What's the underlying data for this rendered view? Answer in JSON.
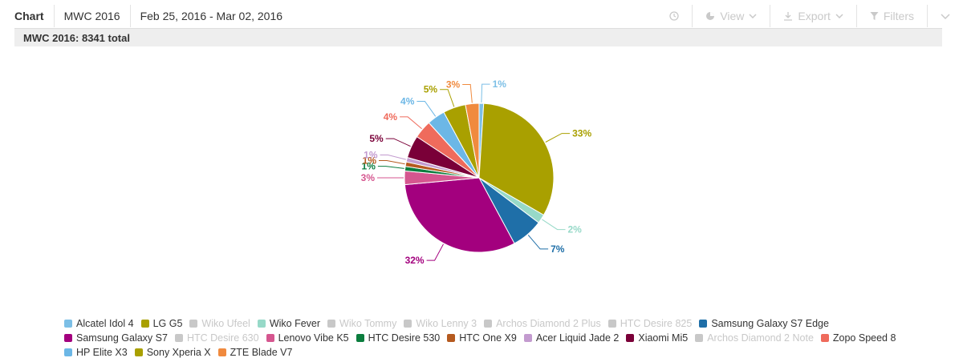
{
  "toolbar": {
    "tab_label": "Chart",
    "report_name": "MWC 2016",
    "date_range": "Feb 25, 2016 - Mar 02, 2016",
    "view_label": "View",
    "export_label": "Export",
    "filters_label": "Filters"
  },
  "subheader": {
    "title": "MWC 2016: 8341 total"
  },
  "colors": {
    "disabled": "#c8c8c8"
  },
  "chart_data": {
    "type": "pie",
    "slices": [
      {
        "label": "Alcatel Idol 4",
        "value": 1,
        "pct_label": "1%",
        "color": "#7cbfe6",
        "enabled": true
      },
      {
        "label": "LG G5",
        "value": 33,
        "pct_label": "33%",
        "color": "#a9a000",
        "enabled": true
      },
      {
        "label": "Wiko Ufeel",
        "value": 0,
        "pct_label": "",
        "color": "#c8c8c8",
        "enabled": false
      },
      {
        "label": "Wiko Fever",
        "value": 2,
        "pct_label": "2%",
        "color": "#97d9c8",
        "enabled": true
      },
      {
        "label": "Wiko Tommy",
        "value": 0,
        "pct_label": "",
        "color": "#c8c8c8",
        "enabled": false
      },
      {
        "label": "Wiko Lenny 3",
        "value": 0,
        "pct_label": "",
        "color": "#c8c8c8",
        "enabled": false
      },
      {
        "label": "Archos Diamond 2 Plus",
        "value": 0,
        "pct_label": "",
        "color": "#c8c8c8",
        "enabled": false
      },
      {
        "label": "HTC Desire 825",
        "value": 0,
        "pct_label": "",
        "color": "#c8c8c8",
        "enabled": false
      },
      {
        "label": "Samsung Galaxy S7 Edge",
        "value": 7,
        "pct_label": "7%",
        "color": "#1f6fa8",
        "enabled": true
      },
      {
        "label": "Samsung Galaxy S7",
        "value": 32,
        "pct_label": "32%",
        "color": "#a3007e",
        "enabled": true
      },
      {
        "label": "HTC Desire 630",
        "value": 0,
        "pct_label": "",
        "color": "#c8c8c8",
        "enabled": false
      },
      {
        "label": "Lenovo Vibe K5",
        "value": 3,
        "pct_label": "3%",
        "color": "#d5568f",
        "enabled": true
      },
      {
        "label": "HTC Desire 530",
        "value": 1,
        "pct_label": "1%",
        "color": "#0b7d3e",
        "enabled": true
      },
      {
        "label": "HTC One X9",
        "value": 1,
        "pct_label": "1%",
        "color": "#b55a1f",
        "enabled": true
      },
      {
        "label": "Acer Liquid Jade 2",
        "value": 1,
        "pct_label": "1%",
        "color": "#c39bcf",
        "enabled": true
      },
      {
        "label": "Xiaomi Mi5",
        "value": 5,
        "pct_label": "5%",
        "color": "#7a0038",
        "enabled": true
      },
      {
        "label": "Archos Diamond 2 Note",
        "value": 0,
        "pct_label": "",
        "color": "#c8c8c8",
        "enabled": false
      },
      {
        "label": "Zopo Speed 8",
        "value": 4,
        "pct_label": "4%",
        "color": "#ef6b5c",
        "enabled": true
      },
      {
        "label": "HP Elite X3",
        "value": 4,
        "pct_label": "4%",
        "color": "#6cb7e6",
        "enabled": true
      },
      {
        "label": "Sony Xperia X",
        "value": 5,
        "pct_label": "5%",
        "color": "#a9a000",
        "enabled": true
      },
      {
        "label": "ZTE Blade V7",
        "value": 3,
        "pct_label": "3%",
        "color": "#f08a3e",
        "enabled": true
      }
    ]
  }
}
